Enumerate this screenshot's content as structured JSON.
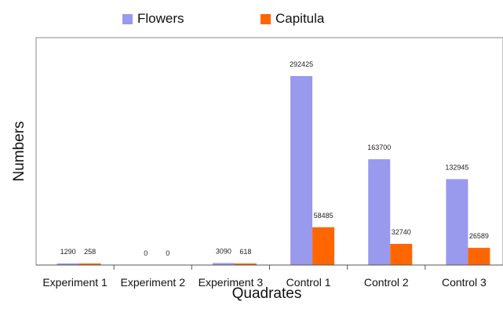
{
  "chart_data": {
    "type": "bar",
    "title": "",
    "xlabel": "Quadrates",
    "ylabel": "Numbers",
    "categories": [
      "Experiment 1",
      "Experiment 2",
      "Experiment 3",
      "Control 1",
      "Control 2",
      "Control 3"
    ],
    "series": [
      {
        "name": "Flowers",
        "color": "#9999ee",
        "values": [
          1290,
          0,
          3090,
          292425,
          163700,
          132945
        ]
      },
      {
        "name": "Capitula",
        "color": "#ff6600",
        "values": [
          258,
          0,
          618,
          58485,
          32740,
          26589
        ]
      }
    ],
    "ylim": [
      0,
      300000
    ],
    "grid": false,
    "y_ticks_shown": false,
    "data_labels": true,
    "legend_position": "top"
  }
}
